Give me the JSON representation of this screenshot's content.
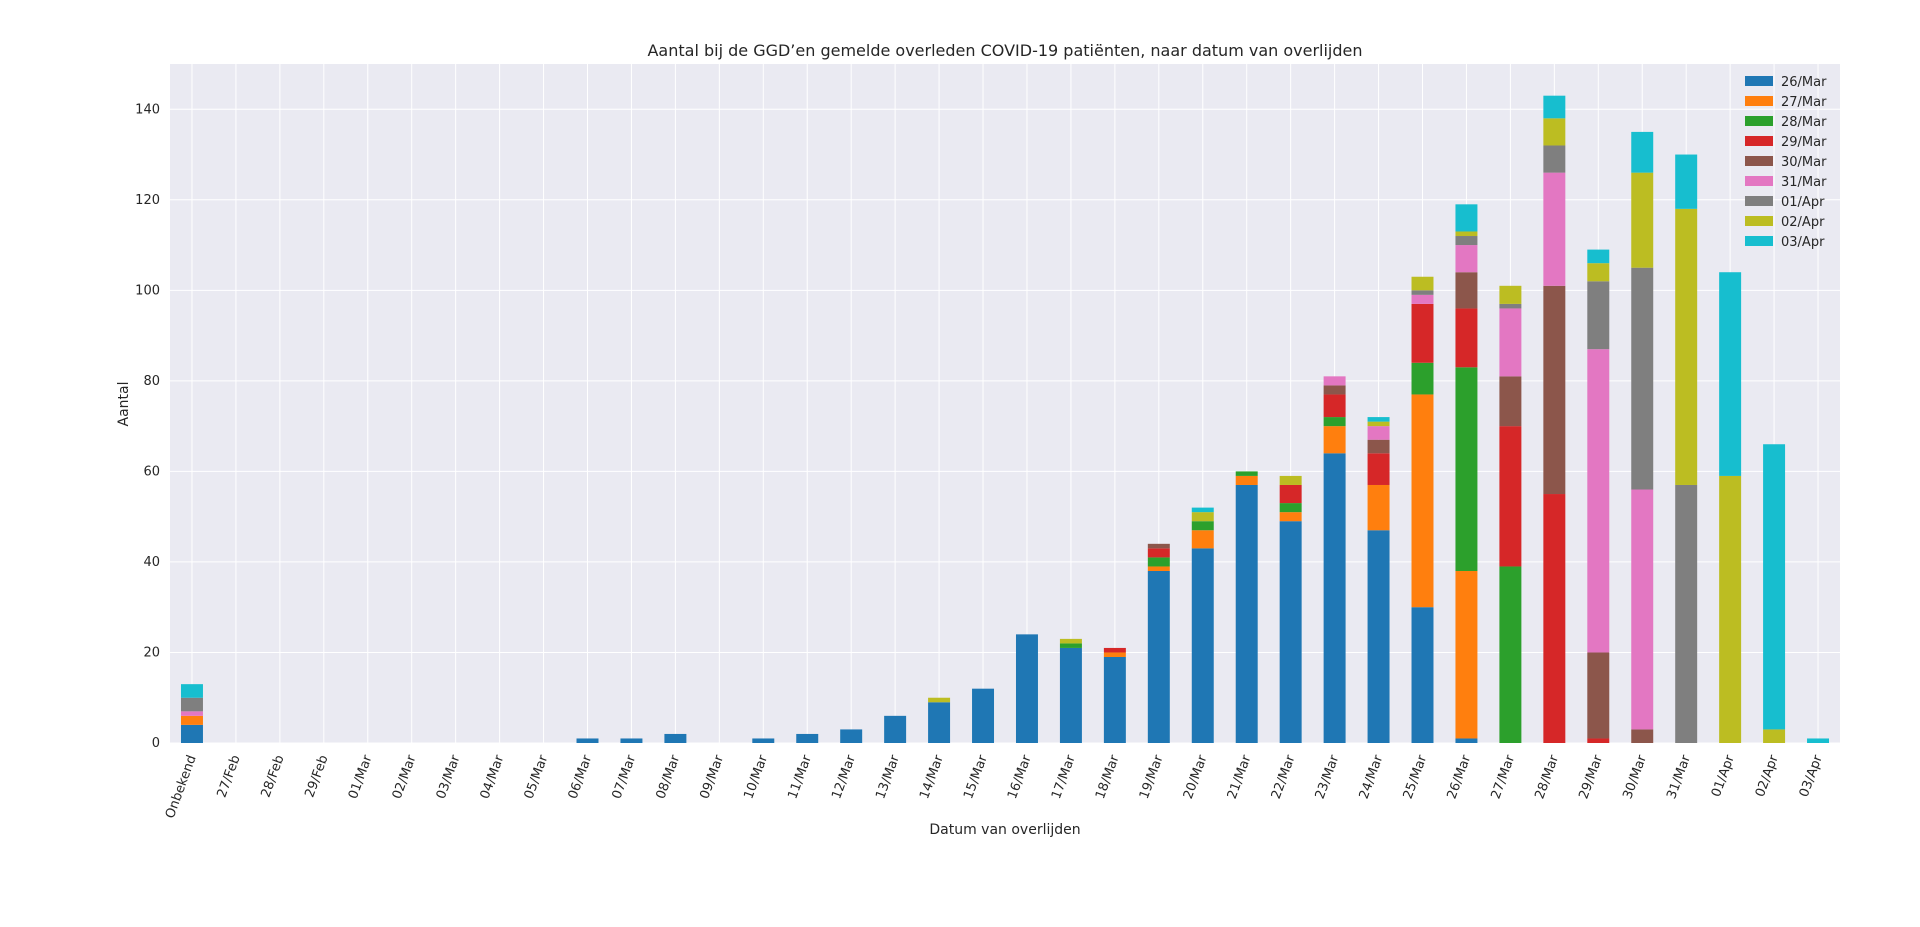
{
  "chart_data": {
    "type": "bar",
    "stacked": true,
    "title": "Aantal bij de GGD’en gemelde overleden COVID-19 patiënten, naar datum van overlijden",
    "xlabel": "Datum van overlijden",
    "ylabel": "Aantal",
    "ylim": [
      0,
      150
    ],
    "yticks": [
      0,
      20,
      40,
      60,
      80,
      100,
      120,
      140
    ],
    "grid": true,
    "legend_position": "top-right",
    "categories": [
      "Onbekend",
      "27/Feb",
      "28/Feb",
      "29/Feb",
      "01/Mar",
      "02/Mar",
      "03/Mar",
      "04/Mar",
      "05/Mar",
      "06/Mar",
      "07/Mar",
      "08/Mar",
      "09/Mar",
      "10/Mar",
      "11/Mar",
      "12/Mar",
      "13/Mar",
      "14/Mar",
      "15/Mar",
      "16/Mar",
      "17/Mar",
      "18/Mar",
      "19/Mar",
      "20/Mar",
      "21/Mar",
      "22/Mar",
      "23/Mar",
      "24/Mar",
      "25/Mar",
      "26/Mar",
      "27/Mar",
      "28/Mar",
      "29/Mar",
      "30/Mar",
      "31/Mar",
      "01/Apr",
      "02/Apr",
      "03/Apr"
    ],
    "series": [
      {
        "name": "26/Mar",
        "color": "#1f77b4",
        "values": [
          4,
          0,
          0,
          0,
          0,
          0,
          0,
          0,
          0,
          1,
          1,
          2,
          0,
          1,
          2,
          3,
          6,
          9,
          12,
          24,
          21,
          19,
          38,
          43,
          57,
          49,
          64,
          47,
          30,
          1,
          0,
          0,
          0,
          0,
          0,
          0,
          0,
          0
        ]
      },
      {
        "name": "27/Mar",
        "color": "#ff7f0e",
        "values": [
          2,
          0,
          0,
          0,
          0,
          0,
          0,
          0,
          0,
          0,
          0,
          0,
          0,
          0,
          0,
          0,
          0,
          0,
          0,
          0,
          0,
          1,
          1,
          4,
          2,
          2,
          6,
          10,
          47,
          37,
          0,
          0,
          0,
          0,
          0,
          0,
          0,
          0
        ]
      },
      {
        "name": "28/Mar",
        "color": "#2ca02c",
        "values": [
          0,
          0,
          0,
          0,
          0,
          0,
          0,
          0,
          0,
          0,
          0,
          0,
          0,
          0,
          0,
          0,
          0,
          0,
          0,
          0,
          1,
          0,
          2,
          2,
          1,
          2,
          2,
          0,
          7,
          45,
          39,
          0,
          0,
          0,
          0,
          0,
          0,
          0
        ]
      },
      {
        "name": "29/Mar",
        "color": "#d62728",
        "values": [
          0,
          0,
          0,
          0,
          0,
          0,
          0,
          0,
          0,
          0,
          0,
          0,
          0,
          0,
          0,
          0,
          0,
          0,
          0,
          0,
          0,
          1,
          2,
          0,
          0,
          4,
          5,
          7,
          13,
          13,
          31,
          55,
          1,
          0,
          0,
          0,
          0,
          0
        ]
      },
      {
        "name": "30/Mar",
        "color": "#8c564b",
        "values": [
          0,
          0,
          0,
          0,
          0,
          0,
          0,
          0,
          0,
          0,
          0,
          0,
          0,
          0,
          0,
          0,
          0,
          0,
          0,
          0,
          0,
          0,
          1,
          0,
          0,
          0,
          2,
          3,
          0,
          8,
          11,
          46,
          19,
          3,
          0,
          0,
          0,
          0
        ]
      },
      {
        "name": "31/Mar",
        "color": "#e377c2",
        "values": [
          1,
          0,
          0,
          0,
          0,
          0,
          0,
          0,
          0,
          0,
          0,
          0,
          0,
          0,
          0,
          0,
          0,
          0,
          0,
          0,
          0,
          0,
          0,
          0,
          0,
          0,
          2,
          3,
          2,
          6,
          15,
          25,
          67,
          53,
          0,
          0,
          0,
          0
        ]
      },
      {
        "name": "01/Apr",
        "color": "#7f7f7f",
        "values": [
          3,
          0,
          0,
          0,
          0,
          0,
          0,
          0,
          0,
          0,
          0,
          0,
          0,
          0,
          0,
          0,
          0,
          0,
          0,
          0,
          0,
          0,
          0,
          0,
          0,
          0,
          0,
          0,
          1,
          2,
          1,
          6,
          15,
          49,
          57,
          0,
          0,
          0
        ]
      },
      {
        "name": "02/Apr",
        "color": "#bcbd22",
        "values": [
          0,
          0,
          0,
          0,
          0,
          0,
          0,
          0,
          0,
          0,
          0,
          0,
          0,
          0,
          0,
          0,
          0,
          1,
          0,
          0,
          1,
          0,
          0,
          2,
          0,
          2,
          0,
          1,
          3,
          1,
          4,
          6,
          4,
          21,
          61,
          59,
          3,
          0
        ]
      },
      {
        "name": "03/Apr",
        "color": "#17becf",
        "values": [
          3,
          0,
          0,
          0,
          0,
          0,
          0,
          0,
          0,
          0,
          0,
          0,
          0,
          0,
          0,
          0,
          0,
          0,
          0,
          0,
          0,
          0,
          0,
          1,
          0,
          0,
          0,
          1,
          0,
          6,
          0,
          5,
          3,
          9,
          12,
          45,
          63,
          1
        ]
      }
    ]
  }
}
